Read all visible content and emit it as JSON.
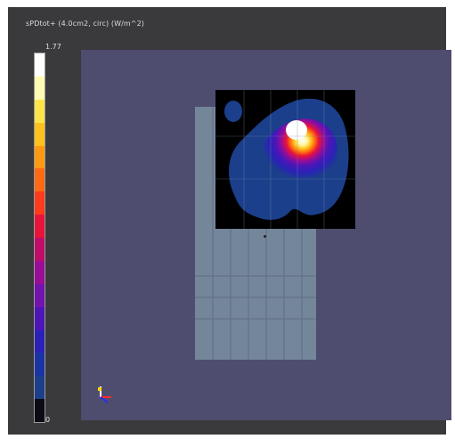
{
  "colorbar": {
    "title": "sPDtot+ (4.0cm2, circ) (W/m^2)",
    "max_label": "1.77",
    "min_label": "0",
    "colors": [
      "#ffffff",
      "#fffbb0",
      "#ffe44a",
      "#ffc21c",
      "#ff9a10",
      "#ff6a12",
      "#ff3b1b",
      "#e8133a",
      "#c00c6a",
      "#9a0d96",
      "#7412b0",
      "#4d15b8",
      "#2a22b6",
      "#1a34a4",
      "#1b3f8b",
      "#0b0b14"
    ]
  },
  "viewport": {
    "colors": {
      "background": "#4e4d6f",
      "phantom": "#74869a",
      "scan_bg": "#000000",
      "frame": "#3a3a3c"
    }
  },
  "axes_triad": {
    "icon": "xyz-axes-icon",
    "colors": [
      "#ffffff",
      "#ff2a2a",
      "#2a2aff",
      "#ffd400"
    ]
  }
}
